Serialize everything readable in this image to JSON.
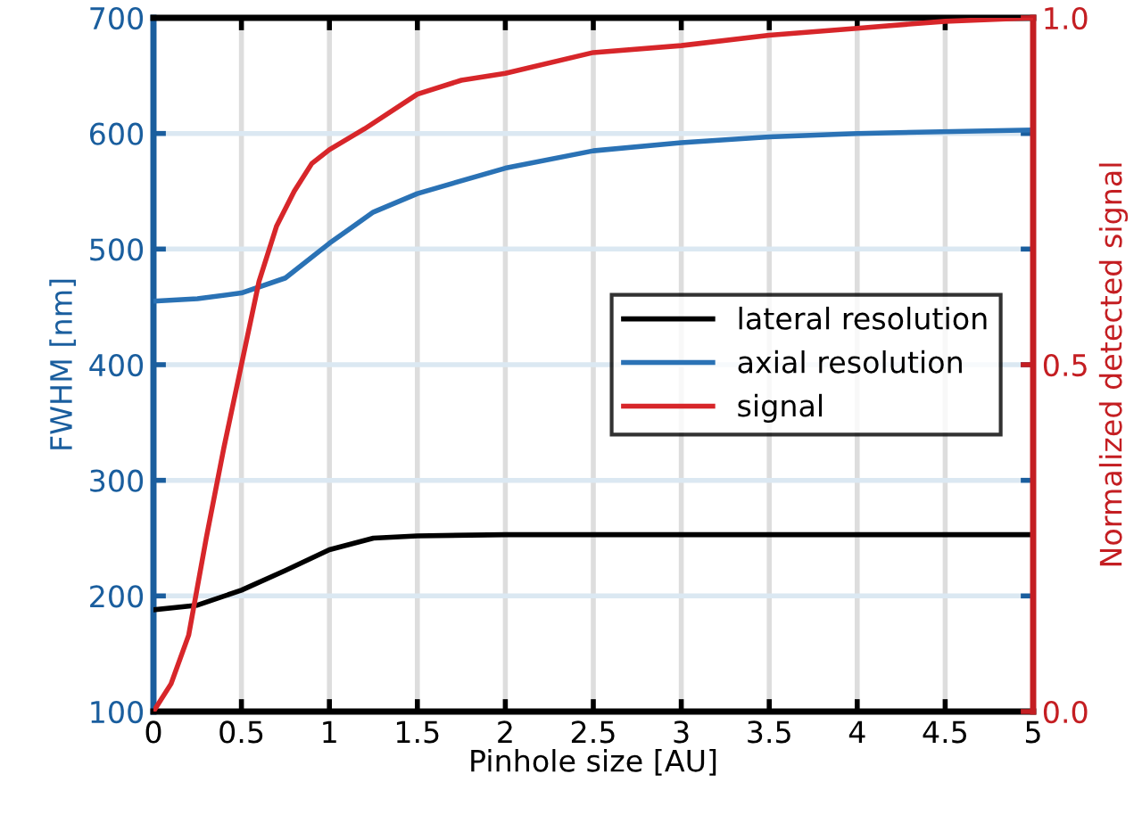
{
  "chart_data": {
    "type": "line",
    "xlabel": "Pinhole size [AU]",
    "ylabel": "FWHM [nm]",
    "y2label": "Normalized detected signal",
    "xlim": [
      0,
      5
    ],
    "xticks": [
      0,
      0.5,
      1,
      1.5,
      2,
      2.5,
      3,
      3.5,
      4,
      4.5,
      5
    ],
    "ylim": [
      100,
      700
    ],
    "yticks": [
      100,
      200,
      300,
      400,
      500,
      600,
      700
    ],
    "y2lim": [
      0,
      1
    ],
    "y2ticks": [
      {
        "value": 0,
        "label": "0.0"
      },
      {
        "value": 0.5,
        "label": "0.5"
      },
      {
        "value": 1,
        "label": "1.0"
      }
    ],
    "grid": true,
    "legend": "right",
    "line_style": "solid",
    "marker": "none",
    "series": [
      {
        "name": "lateral resolution",
        "color": "#000000",
        "x": [
          0,
          0.25,
          0.5,
          0.75,
          1,
          1.25,
          1.5,
          2,
          3,
          4,
          5
        ],
        "values": [
          188,
          192,
          205,
          222,
          240,
          250,
          252,
          253,
          253,
          253,
          253
        ]
      },
      {
        "name": "axial resolution",
        "color": "#2a72b5",
        "x": [
          0,
          0.25,
          0.5,
          0.75,
          1,
          1.25,
          1.5,
          2,
          2.5,
          3,
          3.5,
          4,
          5
        ],
        "values": [
          455,
          457,
          462,
          475,
          505,
          532,
          548,
          570,
          585,
          592,
          597,
          600,
          603
        ]
      },
      {
        "name": "signal",
        "color": "#d7262a",
        "axis": "y2",
        "x": [
          0,
          0.1,
          0.2,
          0.3,
          0.4,
          0.5,
          0.6,
          0.7,
          0.8,
          0.9,
          1.0,
          1.2,
          1.5,
          1.75,
          2,
          2.5,
          3,
          3.5,
          4,
          4.5,
          5
        ],
        "values": [
          0,
          0.04,
          0.11,
          0.25,
          0.38,
          0.5,
          0.62,
          0.7,
          0.75,
          0.79,
          0.81,
          0.84,
          0.89,
          0.91,
          0.92,
          0.95,
          0.96,
          0.975,
          0.985,
          0.995,
          1.0
        ]
      }
    ]
  }
}
